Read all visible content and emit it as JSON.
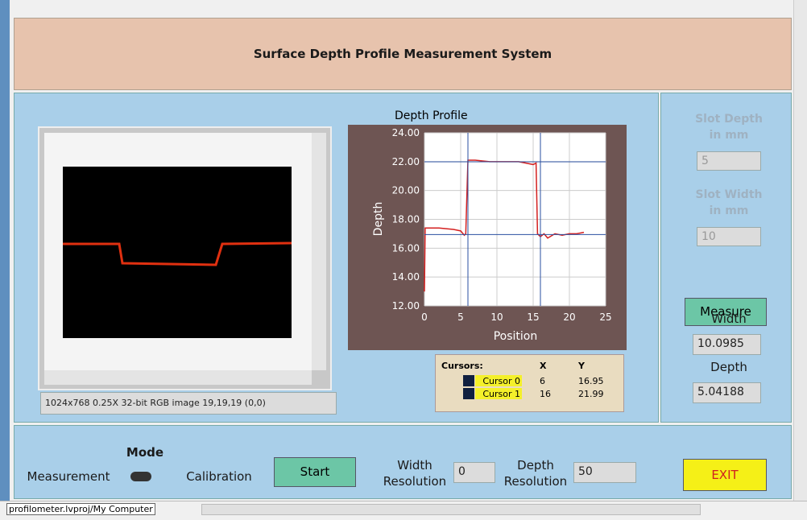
{
  "header": {
    "title": "Surface Depth Profile Measurement System"
  },
  "image_display": {
    "info": "1024x768 0.25X 32-bit RGB image 19,19,19    (0,0)"
  },
  "graph": {
    "type": "line",
    "title": "Depth Profile",
    "x_label": "Position",
    "y_label": "Depth",
    "xlim": [
      0,
      25
    ],
    "xticks": [
      0,
      5,
      10,
      15,
      20,
      25
    ],
    "ylim": [
      12,
      24
    ],
    "yticks": [
      {
        "value": 12,
        "label": "12.00"
      },
      {
        "value": 14,
        "label": "14.00"
      },
      {
        "value": 16,
        "label": "16.00"
      },
      {
        "value": 18,
        "label": "18.00"
      },
      {
        "value": 20,
        "label": "20.00"
      },
      {
        "value": 22,
        "label": "22.00"
      },
      {
        "value": 24,
        "label": "24.00"
      }
    ],
    "grid": true,
    "series": [
      {
        "color": "#d42020",
        "x": [
          0,
          0.1,
          0.5,
          2,
          4,
          5,
          5.5,
          5.7,
          6,
          7,
          9,
          11,
          13,
          14,
          15,
          15.4,
          15.6,
          16,
          16.5,
          17,
          18,
          19,
          20,
          21,
          22
        ],
        "y": [
          13,
          17.4,
          17.4,
          17.4,
          17.3,
          17.2,
          16.9,
          17,
          22.1,
          22.1,
          22.0,
          22.0,
          22.0,
          21.9,
          21.8,
          21.9,
          17.0,
          16.8,
          17.0,
          16.7,
          17.0,
          16.9,
          17.0,
          17.0,
          17.1
        ]
      }
    ],
    "cursor_color": "#2a4fa0"
  },
  "cursors": {
    "header": [
      "Cursors:",
      "X",
      "Y"
    ],
    "rows": [
      {
        "name": "Cursor 0",
        "x": 6,
        "y": 16.95
      },
      {
        "name": "Cursor 1",
        "x": 16,
        "y": 21.99
      }
    ]
  },
  "right_panel": {
    "slot_depth_label": "Slot Depth\nin mm",
    "slot_depth": "5",
    "slot_width_label": "Slot Width\nin mm",
    "slot_width": "10",
    "measure_button": "Measure",
    "width_label": "Width",
    "width_value": "10.0985",
    "depth_label": "Depth",
    "depth_value": "5.04188"
  },
  "bottom_panel": {
    "mode_label": "Mode",
    "measurement": "Measurement",
    "calibration": "Calibration",
    "start_button": "Start",
    "width_resolution_label": "Width\nResolution",
    "width_resolution": "0",
    "depth_resolution_label": "Depth\nResolution",
    "depth_resolution": "50",
    "exit_button": "EXIT"
  },
  "status_bar": {
    "path": "profilometer.lvproj/My Computer"
  }
}
